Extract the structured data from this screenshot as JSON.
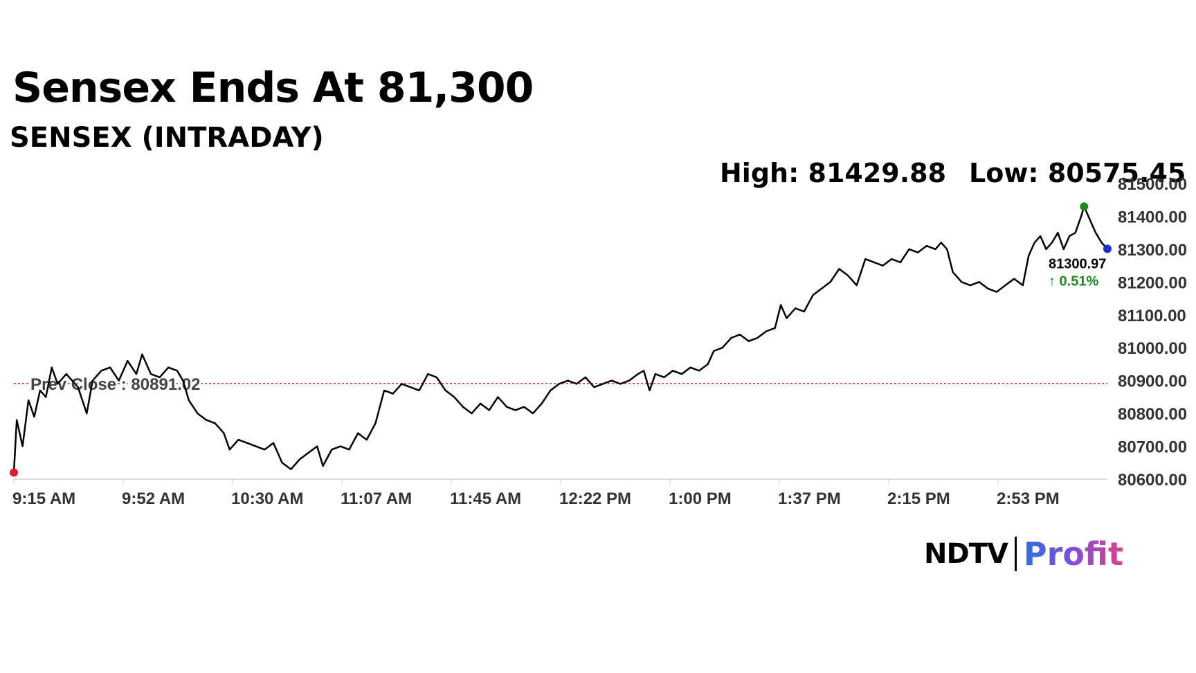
{
  "headline": "Sensex Ends At 81,300",
  "subtitle": "SENSEX (INTRADAY)",
  "stats": {
    "high_label": "High: 81429.88",
    "low_label": "Low: 80575.45"
  },
  "prev_close_label": "Prev Close : 80891.02",
  "last_value_label": "81300.97",
  "change_label": "↑ 0.51%",
  "brand": {
    "left": "NDTV",
    "right": "Profit"
  },
  "colors": {
    "line": "#000000",
    "prev_close": "#c0392b",
    "start_marker": "#e01e2b",
    "high_marker": "#1a8a1a",
    "last_marker": "#1a2fd0",
    "change_up": "#1a8a1a"
  },
  "chart_data": {
    "type": "line",
    "title": "SENSEX (INTRADAY)",
    "ylim": [
      80600,
      81500
    ],
    "y_ticks": [
      "81500.00",
      "81400.00",
      "81300.00",
      "81200.00",
      "81100.00",
      "81000.00",
      "80900.00",
      "80800.00",
      "80700.00",
      "80600.00"
    ],
    "x_ticks": [
      "9:15 AM",
      "9:52 AM",
      "10:30 AM",
      "11:07 AM",
      "11:45 AM",
      "12:22 PM",
      "1:00 PM",
      "1:37 PM",
      "2:15 PM",
      "2:53 PM"
    ],
    "x_range_minutes": [
      0,
      375
    ],
    "prev_close": 80891.02,
    "high": 81429.88,
    "low": 80575.45,
    "last": 81300.97,
    "change_pct": 0.51,
    "grid": false,
    "series": [
      {
        "values": [
          [
            0,
            80620
          ],
          [
            1,
            80780
          ],
          [
            3,
            80700
          ],
          [
            5,
            80840
          ],
          [
            7,
            80790
          ],
          [
            9,
            80870
          ],
          [
            11,
            80850
          ],
          [
            13,
            80940
          ],
          [
            15,
            80890
          ],
          [
            18,
            80920
          ],
          [
            22,
            80880
          ],
          [
            25,
            80800
          ],
          [
            27,
            80900
          ],
          [
            30,
            80930
          ],
          [
            33,
            80940
          ],
          [
            36,
            80900
          ],
          [
            39,
            80960
          ],
          [
            42,
            80920
          ],
          [
            44,
            80980
          ],
          [
            47,
            80920
          ],
          [
            50,
            80910
          ],
          [
            53,
            80940
          ],
          [
            56,
            80930
          ],
          [
            58,
            80900
          ],
          [
            60,
            80840
          ],
          [
            63,
            80800
          ],
          [
            66,
            80780
          ],
          [
            69,
            80770
          ],
          [
            72,
            80740
          ],
          [
            74,
            80690
          ],
          [
            77,
            80720
          ],
          [
            80,
            80710
          ],
          [
            83,
            80700
          ],
          [
            86,
            80690
          ],
          [
            89,
            80710
          ],
          [
            92,
            80650
          ],
          [
            95,
            80630
          ],
          [
            98,
            80660
          ],
          [
            101,
            80680
          ],
          [
            104,
            80700
          ],
          [
            106,
            80640
          ],
          [
            109,
            80690
          ],
          [
            112,
            80700
          ],
          [
            115,
            80690
          ],
          [
            118,
            80740
          ],
          [
            121,
            80720
          ],
          [
            124,
            80770
          ],
          [
            127,
            80870
          ],
          [
            130,
            80860
          ],
          [
            133,
            80890
          ],
          [
            136,
            80880
          ],
          [
            139,
            80870
          ],
          [
            142,
            80920
          ],
          [
            145,
            80910
          ],
          [
            148,
            80870
          ],
          [
            151,
            80850
          ],
          [
            154,
            80820
          ],
          [
            157,
            80800
          ],
          [
            160,
            80830
          ],
          [
            163,
            80810
          ],
          [
            166,
            80850
          ],
          [
            169,
            80820
          ],
          [
            172,
            80810
          ],
          [
            175,
            80820
          ],
          [
            178,
            80800
          ],
          [
            181,
            80830
          ],
          [
            184,
            80870
          ],
          [
            187,
            80890
          ],
          [
            190,
            80900
          ],
          [
            193,
            80890
          ],
          [
            196,
            80910
          ],
          [
            199,
            80880
          ],
          [
            202,
            80890
          ],
          [
            205,
            80900
          ],
          [
            208,
            80890
          ],
          [
            211,
            80900
          ],
          [
            214,
            80920
          ],
          [
            216,
            80930
          ],
          [
            218,
            80870
          ],
          [
            220,
            80920
          ],
          [
            223,
            80910
          ],
          [
            226,
            80930
          ],
          [
            229,
            80920
          ],
          [
            232,
            80940
          ],
          [
            235,
            80930
          ],
          [
            238,
            80950
          ],
          [
            240,
            80990
          ],
          [
            243,
            81000
          ],
          [
            246,
            81030
          ],
          [
            249,
            81040
          ],
          [
            252,
            81020
          ],
          [
            255,
            81030
          ],
          [
            258,
            81050
          ],
          [
            261,
            81060
          ],
          [
            263,
            81130
          ],
          [
            265,
            81090
          ],
          [
            268,
            81120
          ],
          [
            271,
            81110
          ],
          [
            274,
            81160
          ],
          [
            277,
            81180
          ],
          [
            280,
            81200
          ],
          [
            283,
            81240
          ],
          [
            286,
            81220
          ],
          [
            289,
            81190
          ],
          [
            292,
            81270
          ],
          [
            295,
            81260
          ],
          [
            298,
            81250
          ],
          [
            301,
            81270
          ],
          [
            304,
            81260
          ],
          [
            307,
            81300
          ],
          [
            310,
            81290
          ],
          [
            313,
            81310
          ],
          [
            316,
            81300
          ],
          [
            318,
            81320
          ],
          [
            320,
            81300
          ],
          [
            322,
            81230
          ],
          [
            325,
            81200
          ],
          [
            328,
            81190
          ],
          [
            331,
            81200
          ],
          [
            334,
            81180
          ],
          [
            337,
            81170
          ],
          [
            340,
            81190
          ],
          [
            343,
            81210
          ],
          [
            346,
            81190
          ],
          [
            348,
            81280
          ],
          [
            350,
            81320
          ],
          [
            352,
            81340
          ],
          [
            354,
            81300
          ],
          [
            356,
            81320
          ],
          [
            358,
            81350
          ],
          [
            360,
            81300
          ],
          [
            362,
            81340
          ],
          [
            364,
            81350
          ],
          [
            366,
            81400
          ],
          [
            367,
            81429.88
          ],
          [
            369,
            81390
          ],
          [
            371,
            81350
          ],
          [
            373,
            81320
          ],
          [
            375,
            81300.97
          ]
        ]
      }
    ]
  }
}
